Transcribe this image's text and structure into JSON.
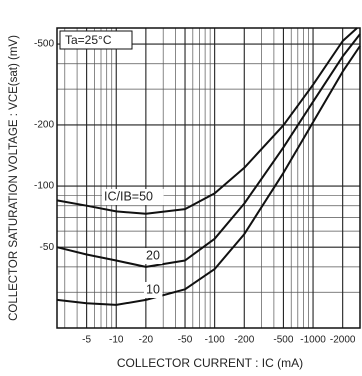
{
  "chart_data": {
    "type": "line",
    "annotation": "Ta=25°C",
    "xlabel": "COLLECTOR CURRENT : IC (mA)",
    "ylabel": "COLLECTOR SATURATION VOLTAGE : VCE(sat) (mV)",
    "log_x": true,
    "log_y": true,
    "grid": true,
    "xlim": [
      -2.5,
      -3000
    ],
    "ylim": [
      -20,
      -600
    ],
    "xticks": [
      -5,
      -10,
      -20,
      -50,
      -100,
      -200,
      -500,
      -1000,
      -2000
    ],
    "yticks": [
      -50,
      -100,
      -200,
      -500
    ],
    "x_minor_ticks": [
      -3,
      -4,
      -6,
      -7,
      -8,
      -9,
      -30,
      -40,
      -60,
      -70,
      -80,
      -90,
      -300,
      -400,
      -600,
      -700,
      -800,
      -900
    ],
    "y_minor_ticks": [
      -30,
      -40,
      -60,
      -70,
      -80,
      -90,
      -300,
      -400
    ],
    "series": [
      {
        "name": "IC/IB=50",
        "color": "#111111",
        "x": [
          -2.5,
          -5,
          -10,
          -20,
          -50,
          -100,
          -200,
          -500,
          -1000,
          -2000,
          -2800
        ],
        "values": [
          -85,
          -80,
          -75,
          -73,
          -77,
          -92,
          -123,
          -199,
          -315,
          -518,
          -600
        ]
      },
      {
        "name": "20",
        "color": "#111111",
        "x": [
          -2.5,
          -5,
          -10,
          -20,
          -50,
          -100,
          -200,
          -500,
          -1000,
          -2000,
          -3000
        ],
        "values": [
          -50,
          -46,
          -43,
          -40,
          -43,
          -55,
          -82,
          -155,
          -260,
          -435,
          -560
        ]
      },
      {
        "name": "10",
        "color": "#111111",
        "x": [
          -2.5,
          -5,
          -10,
          -20,
          -50,
          -100,
          -200,
          -500,
          -1000,
          -2000,
          -3000
        ],
        "values": [
          -27.5,
          -26.5,
          -26,
          -27.5,
          -31,
          -39,
          -58,
          -116,
          -206,
          -366,
          -489
        ]
      }
    ]
  }
}
